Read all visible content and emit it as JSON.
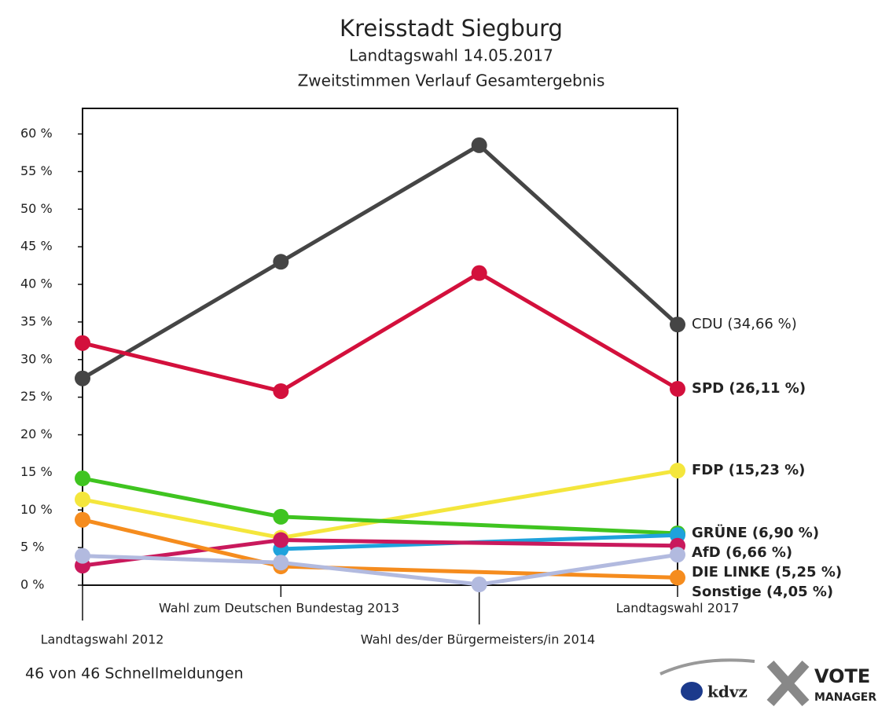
{
  "chart_data": {
    "type": "line",
    "title": "Kreisstadt Siegburg",
    "subtitle": [
      "Landtagswahl 14.05.2017",
      "Zweitstimmen Verlauf Gesamtergebnis"
    ],
    "categories": [
      "Landtagswahl 2012",
      "Wahl zum Deutschen Bundestag 2013",
      "Wahl des/der Bürgermeisters/in 2014",
      "Landtagswahl 2017"
    ],
    "ylim": [
      0,
      63.4
    ],
    "yticks": [
      {
        "value": 0,
        "label": "0 %"
      },
      {
        "value": 5,
        "label": "5 %"
      },
      {
        "value": 10,
        "label": "10 %"
      },
      {
        "value": 15,
        "label": "15 %"
      },
      {
        "value": 20,
        "label": "20 %"
      },
      {
        "value": 25,
        "label": "25 %"
      },
      {
        "value": 30,
        "label": "30 %"
      },
      {
        "value": 35,
        "label": "35 %"
      },
      {
        "value": 40,
        "label": "40 %"
      },
      {
        "value": 45,
        "label": "45 %"
      },
      {
        "value": 50,
        "label": "50 %"
      },
      {
        "value": 55,
        "label": "55 %"
      },
      {
        "value": 60,
        "label": "60 %"
      }
    ],
    "series": [
      {
        "label": "CDU (34,66 %)",
        "color": "#454545",
        "values": [
          27.5,
          43,
          58.5,
          34.66
        ]
      },
      {
        "label": "SPD (26,11 %)",
        "color": "#d3103c",
        "values": [
          32.2,
          25.8,
          41.5,
          26.11
        ]
      },
      {
        "label": "FDP (15,23 %)",
        "color": "#f4e63c",
        "values": [
          11.4,
          6.3,
          null,
          15.23
        ]
      },
      {
        "label": "GRÜNE (6,90 %)",
        "color": "#3fc420",
        "values": [
          14.2,
          9.1,
          null,
          6.9
        ]
      },
      {
        "label": "AfD (6,66 %)",
        "color": "#1ea2dc",
        "values": [
          null,
          4.8,
          null,
          6.66
        ]
      },
      {
        "label": "DIE LINKE (5,25 %)",
        "color": "#c9195c",
        "values": [
          2.6,
          6.0,
          null,
          5.25
        ]
      },
      {
        "color": "#f58c1e",
        "values": [
          8.7,
          2.5,
          null,
          1.0
        ]
      },
      {
        "label": "Sonstige (4,05 %)",
        "color": "#b2badf",
        "values": [
          3.9,
          3.0,
          0.1,
          4.05
        ]
      }
    ],
    "footer": "46 von 46 Schnellmeldungen",
    "logos": [
      "kdvz",
      "VOTE",
      "MANAGER"
    ]
  }
}
